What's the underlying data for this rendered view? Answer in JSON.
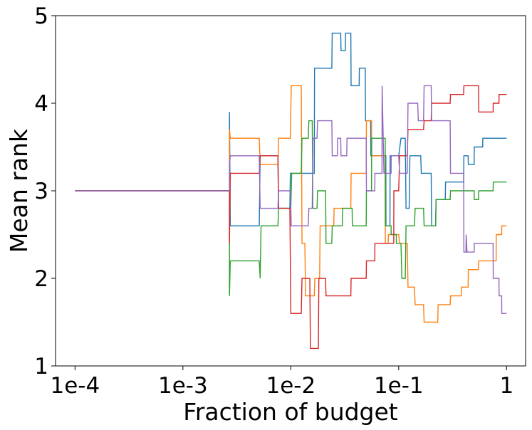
{
  "chart_data": {
    "type": "line",
    "title": "",
    "xlabel": "Fraction of budget",
    "ylabel": "Mean rank",
    "x_scale": "log",
    "xlim": [
      6.6e-05,
      1.5
    ],
    "ylim": [
      1,
      5
    ],
    "x_ticks": [
      {
        "value": 0.0001,
        "label": "1e-4"
      },
      {
        "value": 0.001,
        "label": "1e-3"
      },
      {
        "value": 0.01,
        "label": "1e-2"
      },
      {
        "value": 0.1,
        "label": "1e-1"
      },
      {
        "value": 1,
        "label": "1"
      }
    ],
    "y_ticks": [
      {
        "value": 1,
        "label": "1"
      },
      {
        "value": 2,
        "label": "2"
      },
      {
        "value": 3,
        "label": "3"
      },
      {
        "value": 4,
        "label": "4"
      },
      {
        "value": 5,
        "label": "5"
      }
    ],
    "grid": false,
    "legend": "none",
    "series": [
      {
        "name": "blue",
        "color": "#1f77b4",
        "points": [
          [
            0.0001,
            3
          ],
          [
            0.0027,
            3
          ],
          [
            0.0027,
            3.9
          ],
          [
            0.00275,
            2.6
          ],
          [
            0.0051,
            2.6
          ],
          [
            0.0052,
            3.4
          ],
          [
            0.0076,
            3.4
          ],
          [
            0.0077,
            2.8
          ],
          [
            0.0098,
            2.8
          ],
          [
            0.0099,
            3.2
          ],
          [
            0.0165,
            3.2
          ],
          [
            0.0166,
            4.4
          ],
          [
            0.024,
            4.4
          ],
          [
            0.0242,
            4.8
          ],
          [
            0.029,
            4.8
          ],
          [
            0.0292,
            4.6
          ],
          [
            0.032,
            4.6
          ],
          [
            0.0322,
            4.8
          ],
          [
            0.036,
            4.8
          ],
          [
            0.0362,
            4.2
          ],
          [
            0.043,
            4.2
          ],
          [
            0.0432,
            4.4
          ],
          [
            0.049,
            4.4
          ],
          [
            0.0492,
            3.8
          ],
          [
            0.055,
            3.8
          ],
          [
            0.0552,
            3.4
          ],
          [
            0.076,
            3.4
          ],
          [
            0.0762,
            2.6
          ],
          [
            0.083,
            2.6
          ],
          [
            0.0832,
            3.4
          ],
          [
            0.1,
            3.4
          ],
          [
            0.105,
            3.6
          ],
          [
            0.115,
            3.6
          ],
          [
            0.117,
            2.8
          ],
          [
            0.125,
            2.8
          ],
          [
            0.127,
            3.4
          ],
          [
            0.16,
            3.4
          ],
          [
            0.162,
            3.2
          ],
          [
            0.2,
            3.2
          ],
          [
            0.202,
            2.6
          ],
          [
            0.22,
            2.6
          ],
          [
            0.222,
            2.9
          ],
          [
            0.27,
            2.9
          ],
          [
            0.272,
            3.1
          ],
          [
            0.4,
            3.1
          ],
          [
            0.402,
            3.4
          ],
          [
            0.44,
            3.4
          ],
          [
            0.442,
            3.3
          ],
          [
            0.5,
            3.3
          ],
          [
            0.502,
            3.5
          ],
          [
            0.6,
            3.5
          ],
          [
            0.602,
            3.6
          ],
          [
            1,
            3.6
          ]
        ]
      },
      {
        "name": "orange",
        "color": "#ff7f0e",
        "points": [
          [
            0.0001,
            3
          ],
          [
            0.0027,
            3
          ],
          [
            0.0027,
            3.7
          ],
          [
            0.00275,
            3.6
          ],
          [
            0.0051,
            3.6
          ],
          [
            0.0052,
            3.3
          ],
          [
            0.0076,
            3.3
          ],
          [
            0.0077,
            3.6
          ],
          [
            0.0099,
            3.6
          ],
          [
            0.0101,
            4.2
          ],
          [
            0.0125,
            4.2
          ],
          [
            0.0127,
            2.4
          ],
          [
            0.0135,
            2.4
          ],
          [
            0.0137,
            1.8
          ],
          [
            0.0165,
            1.8
          ],
          [
            0.0167,
            2.0
          ],
          [
            0.0185,
            2.0
          ],
          [
            0.0187,
            2.6
          ],
          [
            0.025,
            2.6
          ],
          [
            0.0252,
            2.8
          ],
          [
            0.036,
            2.8
          ],
          [
            0.0362,
            3.2
          ],
          [
            0.05,
            3.2
          ],
          [
            0.0502,
            3.8
          ],
          [
            0.056,
            3.8
          ],
          [
            0.0562,
            3.4
          ],
          [
            0.075,
            3.4
          ],
          [
            0.0752,
            2.4
          ],
          [
            0.08,
            2.4
          ],
          [
            0.0802,
            2.5
          ],
          [
            0.1,
            2.5
          ],
          [
            0.102,
            2.4
          ],
          [
            0.12,
            2.4
          ],
          [
            0.122,
            1.9
          ],
          [
            0.14,
            1.9
          ],
          [
            0.142,
            1.7
          ],
          [
            0.17,
            1.7
          ],
          [
            0.172,
            1.5
          ],
          [
            0.23,
            1.5
          ],
          [
            0.232,
            1.7
          ],
          [
            0.3,
            1.7
          ],
          [
            0.302,
            1.8
          ],
          [
            0.38,
            1.8
          ],
          [
            0.382,
            1.9
          ],
          [
            0.44,
            1.9
          ],
          [
            0.442,
            2.1
          ],
          [
            0.55,
            2.1
          ],
          [
            0.552,
            2.2
          ],
          [
            0.8,
            2.2
          ],
          [
            0.802,
            2.5
          ],
          [
            0.9,
            2.5
          ],
          [
            0.902,
            2.6
          ],
          [
            1,
            2.6
          ]
        ]
      },
      {
        "name": "green",
        "color": "#2ca02c",
        "points": [
          [
            0.0001,
            3
          ],
          [
            0.0027,
            3
          ],
          [
            0.0027,
            1.8
          ],
          [
            0.00275,
            2.2
          ],
          [
            0.0051,
            2.2
          ],
          [
            0.0052,
            2.0
          ],
          [
            0.0053,
            2.6
          ],
          [
            0.0076,
            2.6
          ],
          [
            0.0077,
            2.8
          ],
          [
            0.01,
            2.8
          ],
          [
            0.0102,
            3.2
          ],
          [
            0.0125,
            3.2
          ],
          [
            0.0127,
            3.6
          ],
          [
            0.0145,
            3.6
          ],
          [
            0.0147,
            3.8
          ],
          [
            0.0158,
            3.8
          ],
          [
            0.016,
            2.8
          ],
          [
            0.0175,
            2.8
          ],
          [
            0.0177,
            3.0
          ],
          [
            0.021,
            3.0
          ],
          [
            0.0212,
            2.4
          ],
          [
            0.024,
            2.4
          ],
          [
            0.0242,
            2.6
          ],
          [
            0.03,
            2.6
          ],
          [
            0.0302,
            2.8
          ],
          [
            0.037,
            2.8
          ],
          [
            0.0372,
            2.6
          ],
          [
            0.05,
            2.6
          ],
          [
            0.0502,
            3.0
          ],
          [
            0.056,
            3.0
          ],
          [
            0.0562,
            3.6
          ],
          [
            0.075,
            3.6
          ],
          [
            0.0752,
            2.6
          ],
          [
            0.085,
            2.6
          ],
          [
            0.0852,
            2.5
          ],
          [
            0.095,
            2.5
          ],
          [
            0.0952,
            2.4
          ],
          [
            0.105,
            2.4
          ],
          [
            0.107,
            2.0
          ],
          [
            0.115,
            2.0
          ],
          [
            0.117,
            2.6
          ],
          [
            0.14,
            2.6
          ],
          [
            0.142,
            2.8
          ],
          [
            0.17,
            2.8
          ],
          [
            0.172,
            2.6
          ],
          [
            0.22,
            2.6
          ],
          [
            0.222,
            2.9
          ],
          [
            0.3,
            2.9
          ],
          [
            0.302,
            3.0
          ],
          [
            0.38,
            3.0
          ],
          [
            0.382,
            3.0
          ],
          [
            0.5,
            3.0
          ],
          [
            0.502,
            2.9
          ],
          [
            0.55,
            2.9
          ],
          [
            0.552,
            3.0
          ],
          [
            0.75,
            3.0
          ],
          [
            0.752,
            3.1
          ],
          [
            1,
            3.1
          ]
        ]
      },
      {
        "name": "red",
        "color": "#d62728",
        "points": [
          [
            0.0001,
            3
          ],
          [
            0.0027,
            3
          ],
          [
            0.0027,
            2.4
          ],
          [
            0.00275,
            3.2
          ],
          [
            0.0051,
            3.2
          ],
          [
            0.0052,
            3.4
          ],
          [
            0.0076,
            3.4
          ],
          [
            0.0077,
            2.8
          ],
          [
            0.0098,
            2.8
          ],
          [
            0.01,
            1.6
          ],
          [
            0.0125,
            1.6
          ],
          [
            0.0127,
            2.0
          ],
          [
            0.015,
            2.0
          ],
          [
            0.0152,
            1.2
          ],
          [
            0.018,
            1.2
          ],
          [
            0.0182,
            2.0
          ],
          [
            0.021,
            2.0
          ],
          [
            0.0212,
            1.8
          ],
          [
            0.036,
            1.8
          ],
          [
            0.0362,
            2.0
          ],
          [
            0.05,
            2.0
          ],
          [
            0.0502,
            2.2
          ],
          [
            0.06,
            2.2
          ],
          [
            0.0602,
            2.4
          ],
          [
            0.09,
            2.4
          ],
          [
            0.0902,
            3.0
          ],
          [
            0.1,
            3.0
          ],
          [
            0.102,
            3.4
          ],
          [
            0.12,
            3.4
          ],
          [
            0.122,
            3.7
          ],
          [
            0.17,
            3.7
          ],
          [
            0.172,
            3.8
          ],
          [
            0.2,
            3.8
          ],
          [
            0.202,
            4.0
          ],
          [
            0.3,
            4.0
          ],
          [
            0.302,
            4.1
          ],
          [
            0.4,
            4.1
          ],
          [
            0.402,
            4.2
          ],
          [
            0.55,
            4.2
          ],
          [
            0.552,
            3.9
          ],
          [
            0.75,
            3.9
          ],
          [
            0.752,
            4.0
          ],
          [
            0.85,
            4.0
          ],
          [
            0.852,
            4.1
          ],
          [
            1,
            4.1
          ]
        ]
      },
      {
        "name": "purple",
        "color": "#9467bd",
        "points": [
          [
            0.0001,
            3
          ],
          [
            0.0027,
            3
          ],
          [
            0.0027,
            3.3
          ],
          [
            0.00275,
            3.4
          ],
          [
            0.0051,
            3.4
          ],
          [
            0.0052,
            2.8
          ],
          [
            0.0076,
            2.8
          ],
          [
            0.0077,
            3.0
          ],
          [
            0.0099,
            3.0
          ],
          [
            0.0101,
            2.6
          ],
          [
            0.0145,
            2.6
          ],
          [
            0.0147,
            2.8
          ],
          [
            0.0158,
            2.8
          ],
          [
            0.016,
            3.6
          ],
          [
            0.0175,
            3.6
          ],
          [
            0.0177,
            3.8
          ],
          [
            0.024,
            3.8
          ],
          [
            0.0242,
            3.4
          ],
          [
            0.027,
            3.4
          ],
          [
            0.0272,
            3.6
          ],
          [
            0.029,
            3.6
          ],
          [
            0.0292,
            3.4
          ],
          [
            0.033,
            3.4
          ],
          [
            0.0332,
            3.6
          ],
          [
            0.05,
            3.6
          ],
          [
            0.0502,
            3.0
          ],
          [
            0.06,
            3.0
          ],
          [
            0.0602,
            3.2
          ],
          [
            0.07,
            3.2
          ],
          [
            0.0702,
            4.2
          ],
          [
            0.073,
            3.2
          ],
          [
            0.085,
            3.2
          ],
          [
            0.0852,
            3.4
          ],
          [
            0.1,
            3.4
          ],
          [
            0.102,
            3.2
          ],
          [
            0.12,
            3.2
          ],
          [
            0.122,
            4.0
          ],
          [
            0.15,
            4.0
          ],
          [
            0.152,
            3.8
          ],
          [
            0.17,
            3.8
          ],
          [
            0.172,
            4.2
          ],
          [
            0.2,
            4.2
          ],
          [
            0.202,
            3.8
          ],
          [
            0.3,
            3.8
          ],
          [
            0.302,
            3.2
          ],
          [
            0.4,
            3.2
          ],
          [
            0.402,
            2.3
          ],
          [
            0.42,
            2.3
          ],
          [
            0.422,
            2.5
          ],
          [
            0.43,
            2.3
          ],
          [
            0.5,
            2.3
          ],
          [
            0.502,
            2.4
          ],
          [
            0.75,
            2.4
          ],
          [
            0.752,
            2.0
          ],
          [
            0.85,
            2.0
          ],
          [
            0.852,
            1.8
          ],
          [
            0.9,
            1.8
          ],
          [
            0.902,
            1.6
          ],
          [
            1,
            1.6
          ]
        ]
      }
    ]
  }
}
